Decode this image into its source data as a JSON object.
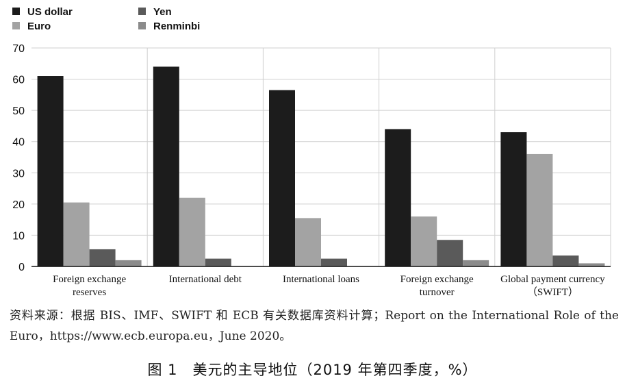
{
  "chart_data": {
    "type": "bar",
    "categories": [
      [
        "Foreign exchange",
        "reserves"
      ],
      [
        "International debt"
      ],
      [
        "International loans"
      ],
      [
        "Foreign exchange",
        "turnover"
      ],
      [
        "Global payment currency",
        "（SWIFT）"
      ]
    ],
    "series": [
      {
        "name": "US dollar",
        "color": "#1c1c1c",
        "values": [
          61,
          64,
          56.5,
          44,
          43
        ]
      },
      {
        "name": "Euro",
        "color": "#a3a3a3",
        "values": [
          20.5,
          22,
          15.5,
          16,
          36
        ]
      },
      {
        "name": "Yen",
        "color": "#5a5a5a",
        "values": [
          5.5,
          2.5,
          2.5,
          8.5,
          3.5
        ]
      },
      {
        "name": "Renminbi",
        "color": "#8b8b8b",
        "values": [
          2,
          null,
          null,
          2,
          1
        ]
      }
    ],
    "ylim": [
      0,
      70
    ],
    "yticks": [
      0,
      10,
      20,
      30,
      40,
      50,
      60,
      70
    ],
    "grid": true,
    "legend_position": "top-left"
  },
  "source_note": "资料来源：根据 BIS、IMF、SWIFT 和 ECB 有关数据库资料计算；Report on the International Role of the Euro，https://www.ecb.europa.eu，June 2020。",
  "caption": "图 1　美元的主导地位（2019 年第四季度，%）"
}
